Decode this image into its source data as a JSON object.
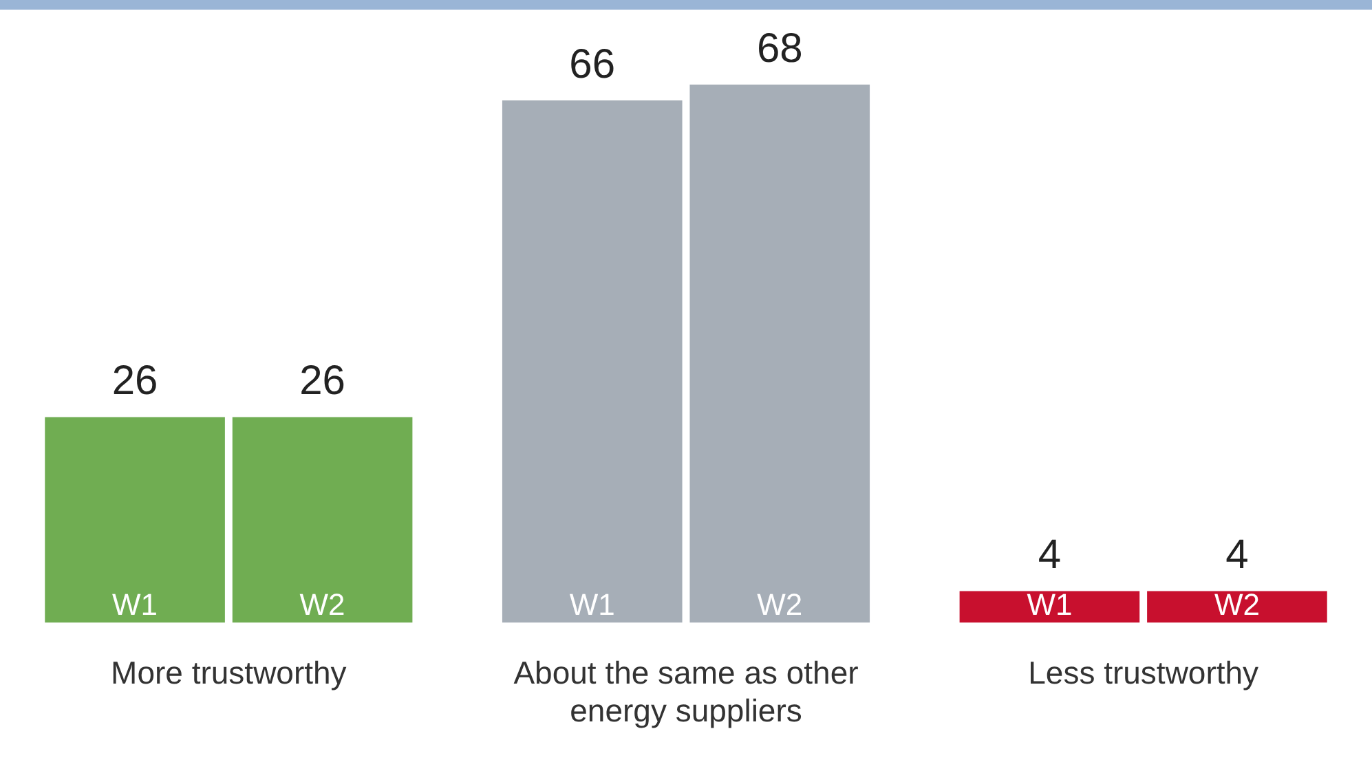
{
  "chart_data": {
    "type": "bar",
    "categories": [
      "More trustworthy",
      "About the same as other energy suppliers",
      "Less trustworthy"
    ],
    "series": [
      {
        "name": "W1",
        "colors": [
          "#70ad52",
          "#a6aeb7",
          "#c8102e"
        ],
        "values": [
          26,
          66,
          4
        ]
      },
      {
        "name": "W2",
        "colors": [
          "#70ad52",
          "#a6aeb7",
          "#c8102e"
        ],
        "values": [
          26,
          68,
          4
        ]
      }
    ],
    "data_labels": true,
    "legend": false,
    "grid": false
  }
}
